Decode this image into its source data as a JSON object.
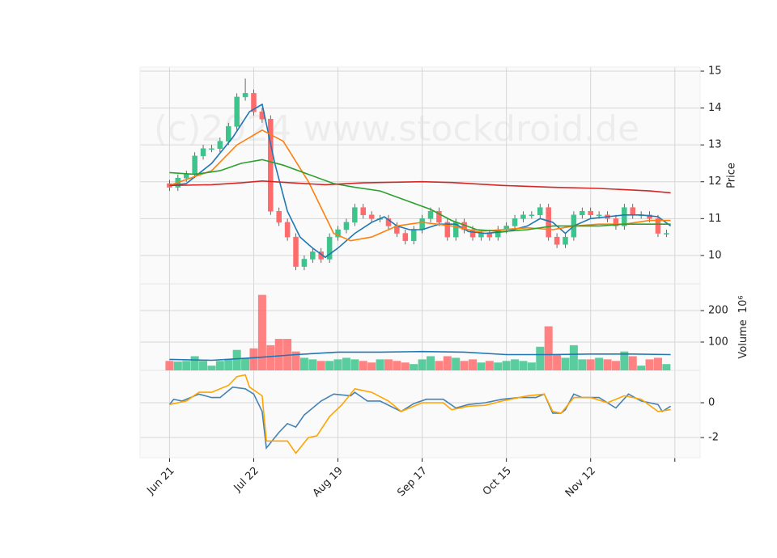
{
  "chart_data": [
    {
      "type": "candlestick",
      "ylabel": "Price",
      "watermark": "(c)2024 www.stockdroid.de",
      "up_color": "#3cc48c",
      "down_color": "#ff6b6b",
      "ylim": [
        9.23,
        15.11
      ],
      "yticks": [
        10,
        11,
        12,
        13,
        14,
        15
      ],
      "grid": true,
      "x": [
        0,
        2,
        4,
        6,
        8,
        10,
        12,
        14,
        16,
        18,
        20,
        22,
        24,
        26,
        28,
        30,
        32,
        34,
        36,
        38,
        40,
        42,
        44,
        46,
        48,
        50,
        52,
        54,
        56,
        58,
        60,
        62,
        64,
        66,
        68,
        70,
        72,
        74,
        76,
        78,
        80,
        82,
        84,
        86,
        88,
        90,
        92,
        94,
        96,
        98,
        100,
        102,
        104,
        106,
        108,
        110,
        112,
        114,
        116,
        118
      ],
      "open": [
        11.95,
        11.85,
        12.1,
        12.2,
        12.7,
        12.9,
        12.9,
        13.1,
        13.5,
        14.3,
        14.4,
        13.9,
        13.7,
        11.2,
        10.9,
        10.5,
        9.7,
        9.9,
        10.1,
        9.9,
        10.5,
        10.7,
        10.9,
        11.3,
        11.1,
        11.0,
        11.0,
        10.8,
        10.6,
        10.4,
        10.7,
        11.0,
        11.2,
        10.9,
        10.5,
        10.9,
        10.7,
        10.5,
        10.6,
        10.5,
        10.7,
        10.8,
        11.0,
        11.1,
        11.1,
        11.3,
        10.5,
        10.3,
        10.5,
        11.1,
        11.2,
        11.1,
        11.1,
        11.0,
        10.8,
        11.3,
        11.1,
        11.1,
        11.0,
        10.6
      ],
      "high": [
        12.05,
        12.2,
        12.3,
        12.8,
        13.0,
        13.0,
        13.2,
        13.6,
        14.4,
        14.8,
        14.5,
        14.0,
        13.8,
        11.3,
        11.0,
        10.6,
        10.0,
        10.2,
        10.2,
        10.6,
        10.8,
        11.0,
        11.4,
        11.4,
        11.2,
        11.1,
        11.1,
        10.9,
        10.7,
        10.8,
        11.1,
        11.3,
        11.3,
        11.0,
        11.0,
        11.0,
        10.8,
        10.7,
        10.7,
        10.8,
        10.9,
        11.1,
        11.2,
        11.2,
        11.4,
        11.4,
        10.6,
        10.6,
        11.2,
        11.3,
        11.3,
        11.2,
        11.2,
        11.1,
        11.4,
        11.4,
        11.2,
        11.2,
        11.1,
        10.7
      ],
      "low": [
        11.75,
        11.75,
        12.0,
        12.1,
        12.6,
        12.8,
        12.8,
        13.0,
        13.4,
        14.2,
        13.8,
        13.6,
        11.1,
        10.8,
        10.4,
        9.6,
        9.6,
        9.8,
        9.8,
        9.8,
        10.4,
        10.6,
        10.8,
        11.0,
        10.9,
        10.9,
        10.7,
        10.5,
        10.3,
        10.3,
        10.6,
        10.9,
        10.8,
        10.4,
        10.4,
        10.6,
        10.4,
        10.4,
        10.4,
        10.4,
        10.6,
        10.7,
        10.9,
        11.0,
        11.0,
        10.4,
        10.2,
        10.2,
        10.4,
        11.0,
        11.0,
        11.0,
        10.9,
        10.7,
        10.7,
        11.0,
        11.0,
        10.9,
        10.5,
        10.5
      ],
      "close": [
        11.85,
        12.1,
        12.2,
        12.7,
        12.9,
        12.9,
        13.1,
        13.5,
        14.3,
        14.4,
        13.9,
        13.7,
        11.2,
        10.9,
        10.5,
        9.7,
        9.9,
        10.1,
        9.9,
        10.5,
        10.7,
        10.9,
        11.3,
        11.1,
        11.0,
        11.0,
        10.8,
        10.6,
        10.4,
        10.7,
        11.0,
        11.2,
        10.9,
        10.5,
        10.9,
        10.7,
        10.5,
        10.6,
        10.5,
        10.7,
        10.8,
        11.0,
        11.1,
        11.1,
        11.3,
        10.5,
        10.3,
        10.5,
        11.1,
        11.2,
        11.1,
        11.1,
        11.0,
        10.8,
        11.3,
        11.1,
        11.1,
        11.0,
        10.6,
        10.6
      ],
      "series": [
        {
          "color": "#1f77b4",
          "x": [
            0,
            4,
            10,
            15,
            19,
            22,
            25,
            28,
            31,
            34,
            37,
            40,
            44,
            48,
            51,
            54,
            57,
            60,
            64,
            68,
            71,
            75,
            80,
            85,
            88,
            91,
            94,
            96,
            100,
            104,
            108,
            112,
            116,
            119
          ],
          "values": [
            11.9,
            11.95,
            12.5,
            13.2,
            13.9,
            14.1,
            12.5,
            11.2,
            10.5,
            10.2,
            9.95,
            10.2,
            10.6,
            10.9,
            11.05,
            10.8,
            10.7,
            10.7,
            10.85,
            10.85,
            10.65,
            10.6,
            10.65,
            10.8,
            11.0,
            10.9,
            10.6,
            10.8,
            11.0,
            11.05,
            11.1,
            11.1,
            11.05,
            10.8
          ]
        },
        {
          "color": "#ff7f0e",
          "x": [
            0,
            10,
            16,
            22,
            27,
            33,
            39,
            43,
            48,
            54,
            60,
            67,
            73,
            79,
            85,
            91,
            96,
            102,
            108,
            114,
            119
          ],
          "values": [
            11.9,
            12.3,
            13.0,
            13.4,
            13.1,
            12.0,
            10.6,
            10.4,
            10.5,
            10.8,
            10.9,
            10.8,
            10.65,
            10.7,
            10.75,
            10.7,
            10.8,
            10.85,
            10.85,
            10.95,
            10.95
          ]
        },
        {
          "color": "#2ca02c",
          "x": [
            0,
            6,
            12,
            17,
            22,
            27,
            33,
            39,
            44,
            50,
            56,
            62,
            67,
            73,
            79,
            85,
            91,
            96,
            102,
            108,
            114,
            119
          ],
          "values": [
            12.25,
            12.2,
            12.3,
            12.5,
            12.6,
            12.45,
            12.2,
            11.95,
            11.85,
            11.75,
            11.5,
            11.25,
            10.95,
            10.7,
            10.65,
            10.7,
            10.8,
            10.8,
            10.8,
            10.85,
            10.85,
            10.85
          ]
        },
        {
          "color": "#d62728",
          "x": [
            0,
            10,
            17,
            22,
            29,
            37,
            46,
            60,
            67,
            79,
            91,
            102,
            114,
            119
          ],
          "values": [
            11.9,
            11.92,
            11.97,
            12.02,
            11.97,
            11.92,
            11.97,
            12.0,
            11.98,
            11.9,
            11.85,
            11.82,
            11.75,
            11.7
          ]
        }
      ]
    },
    {
      "type": "bar",
      "ylabel": "Volume",
      "yscale_label": "10⁶",
      "ylim": [
        10,
        285
      ],
      "yticks": [
        100,
        200
      ],
      "grid": true,
      "values": [
        40,
        38,
        40,
        55,
        40,
        25,
        40,
        45,
        75,
        50,
        80,
        250,
        90,
        110,
        110,
        70,
        50,
        45,
        40,
        40,
        45,
        50,
        45,
        40,
        35,
        45,
        45,
        40,
        35,
        30,
        45,
        55,
        40,
        55,
        50,
        40,
        45,
        35,
        40,
        35,
        40,
        45,
        40,
        35,
        85,
        150,
        60,
        50,
        90,
        45,
        45,
        50,
        45,
        40,
        70,
        55,
        25,
        45,
        50,
        30
      ],
      "series": [
        {
          "color": "#1f77b4",
          "x": [
            0,
            10,
            20,
            30,
            40,
            50,
            60,
            70,
            80,
            90,
            100,
            110,
            119
          ],
          "values": [
            45,
            42,
            50,
            60,
            68,
            68,
            70,
            68,
            60,
            60,
            62,
            62,
            60
          ]
        }
      ]
    },
    {
      "type": "line",
      "ylim": [
        -3.16,
        1.86
      ],
      "yticks": [
        0,
        -2
      ],
      "grid": true,
      "xlim": [
        -7,
        126
      ],
      "xticks": [
        {
          "value": 0,
          "label": "Jun 21"
        },
        {
          "value": 20,
          "label": "Jul 22"
        },
        {
          "value": 40,
          "label": "Aug 19"
        },
        {
          "value": 60,
          "label": "Sep 17"
        },
        {
          "value": 80,
          "label": "Oct 15"
        },
        {
          "value": 100,
          "label": "Nov 12"
        },
        120
      ],
      "series": [
        {
          "color": "#4682b4",
          "x": [
            0,
            1,
            3,
            7,
            10,
            12,
            15,
            18,
            20,
            22,
            23,
            26,
            28,
            30,
            32,
            36,
            39,
            43,
            44,
            47,
            50,
            55,
            58,
            61,
            65,
            68,
            71,
            75,
            79,
            83,
            87,
            89,
            91,
            93,
            94,
            96,
            98,
            102,
            106,
            109,
            112,
            116,
            117,
            119
          ],
          "values": [
            -0.1,
            0.2,
            0.1,
            0.5,
            0.3,
            0.3,
            0.9,
            0.8,
            0.5,
            -0.5,
            -2.6,
            -1.7,
            -1.2,
            -1.4,
            -0.7,
            0.1,
            0.5,
            0.4,
            0.6,
            0.1,
            0.1,
            -0.5,
            -0.05,
            0.2,
            0.2,
            -0.3,
            -0.1,
            0.0,
            0.2,
            0.3,
            0.3,
            0.5,
            -0.6,
            -0.6,
            -0.4,
            0.5,
            0.3,
            0.3,
            -0.3,
            0.5,
            0.1,
            -0.1,
            -0.5,
            -0.2
          ]
        },
        {
          "color": "#ffa500",
          "x": [
            0,
            4,
            7,
            10,
            14,
            16,
            18,
            19,
            22,
            23,
            26,
            28,
            30,
            33,
            35,
            38,
            41,
            44,
            48,
            52,
            55,
            60,
            65,
            67,
            71,
            75,
            79,
            85,
            89,
            91,
            93,
            96,
            100,
            104,
            108,
            112,
            116,
            119
          ],
          "values": [
            -0.1,
            0.1,
            0.6,
            0.6,
            1.0,
            1.5,
            1.6,
            0.9,
            0.4,
            -2.2,
            -2.2,
            -2.2,
            -2.9,
            -2.0,
            -1.9,
            -0.8,
            -0.1,
            0.8,
            0.6,
            0.1,
            -0.5,
            0.0,
            0.0,
            -0.4,
            -0.2,
            -0.15,
            0.1,
            0.4,
            0.5,
            -0.5,
            -0.6,
            0.3,
            0.3,
            0.0,
            0.4,
            0.2,
            -0.5,
            -0.4
          ]
        }
      ]
    }
  ]
}
